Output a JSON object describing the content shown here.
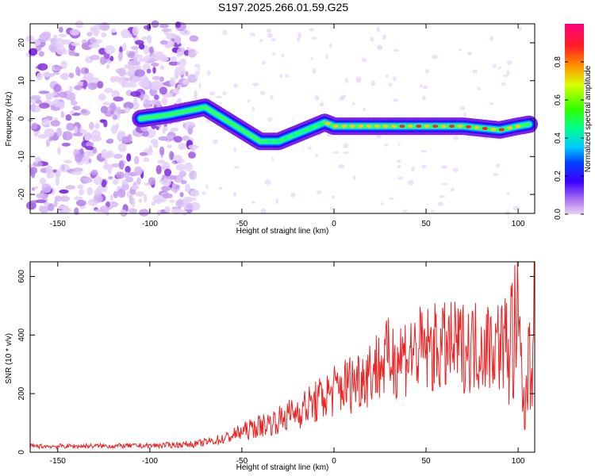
{
  "figure_title": "S197.2025.266.01.59.G25",
  "chart_data": [
    {
      "type": "heatmap",
      "xlabel": "Height of straight line (km)",
      "ylabel": "Frequency (Hz)",
      "xlim": [
        -165,
        109
      ],
      "ylim": [
        -25,
        25
      ],
      "x_ticks": [
        -150,
        -100,
        -50,
        0,
        50,
        100
      ],
      "y_ticks": [
        -20,
        -10,
        0,
        10,
        20
      ],
      "colorbar": {
        "label": "Normalized spectral amplitude",
        "range": [
          0,
          1
        ],
        "ticks": [
          0.0,
          0.2,
          0.4,
          0.6,
          0.8
        ]
      },
      "ridge": {
        "x": [
          -105,
          -90,
          -80,
          -70,
          -60,
          -50,
          -40,
          -30,
          -20,
          -10,
          -5,
          0,
          10,
          30,
          50,
          70,
          90,
          100,
          106
        ],
        "y": [
          0,
          1,
          2,
          3,
          0,
          -3,
          -6,
          -6,
          -4,
          -2,
          -1,
          -2,
          -2,
          -2,
          -2,
          -2,
          -3,
          -2,
          -1.5
        ]
      }
    },
    {
      "type": "line",
      "xlabel": "Height of straight line (km)",
      "ylabel": "SNR (10 * v/v)",
      "xlim": [
        -165,
        109
      ],
      "ylim": [
        0,
        650
      ],
      "x_ticks": [
        -150,
        -100,
        -50,
        0,
        50,
        100
      ],
      "y_ticks": [
        0,
        200,
        400,
        600
      ],
      "color": "#ee2222",
      "trend": {
        "x": [
          -165,
          -100,
          -75,
          -60,
          -50,
          -40,
          -30,
          -20,
          -10,
          0,
          10,
          20,
          30,
          40,
          50,
          60,
          70,
          80,
          90,
          95,
          100,
          102,
          104,
          106,
          109
        ],
        "y": [
          20,
          22,
          28,
          45,
          70,
          90,
          110,
          140,
          170,
          210,
          240,
          280,
          320,
          340,
          350,
          355,
          360,
          365,
          370,
          380,
          400,
          250,
          100,
          450,
          380
        ]
      }
    }
  ]
}
